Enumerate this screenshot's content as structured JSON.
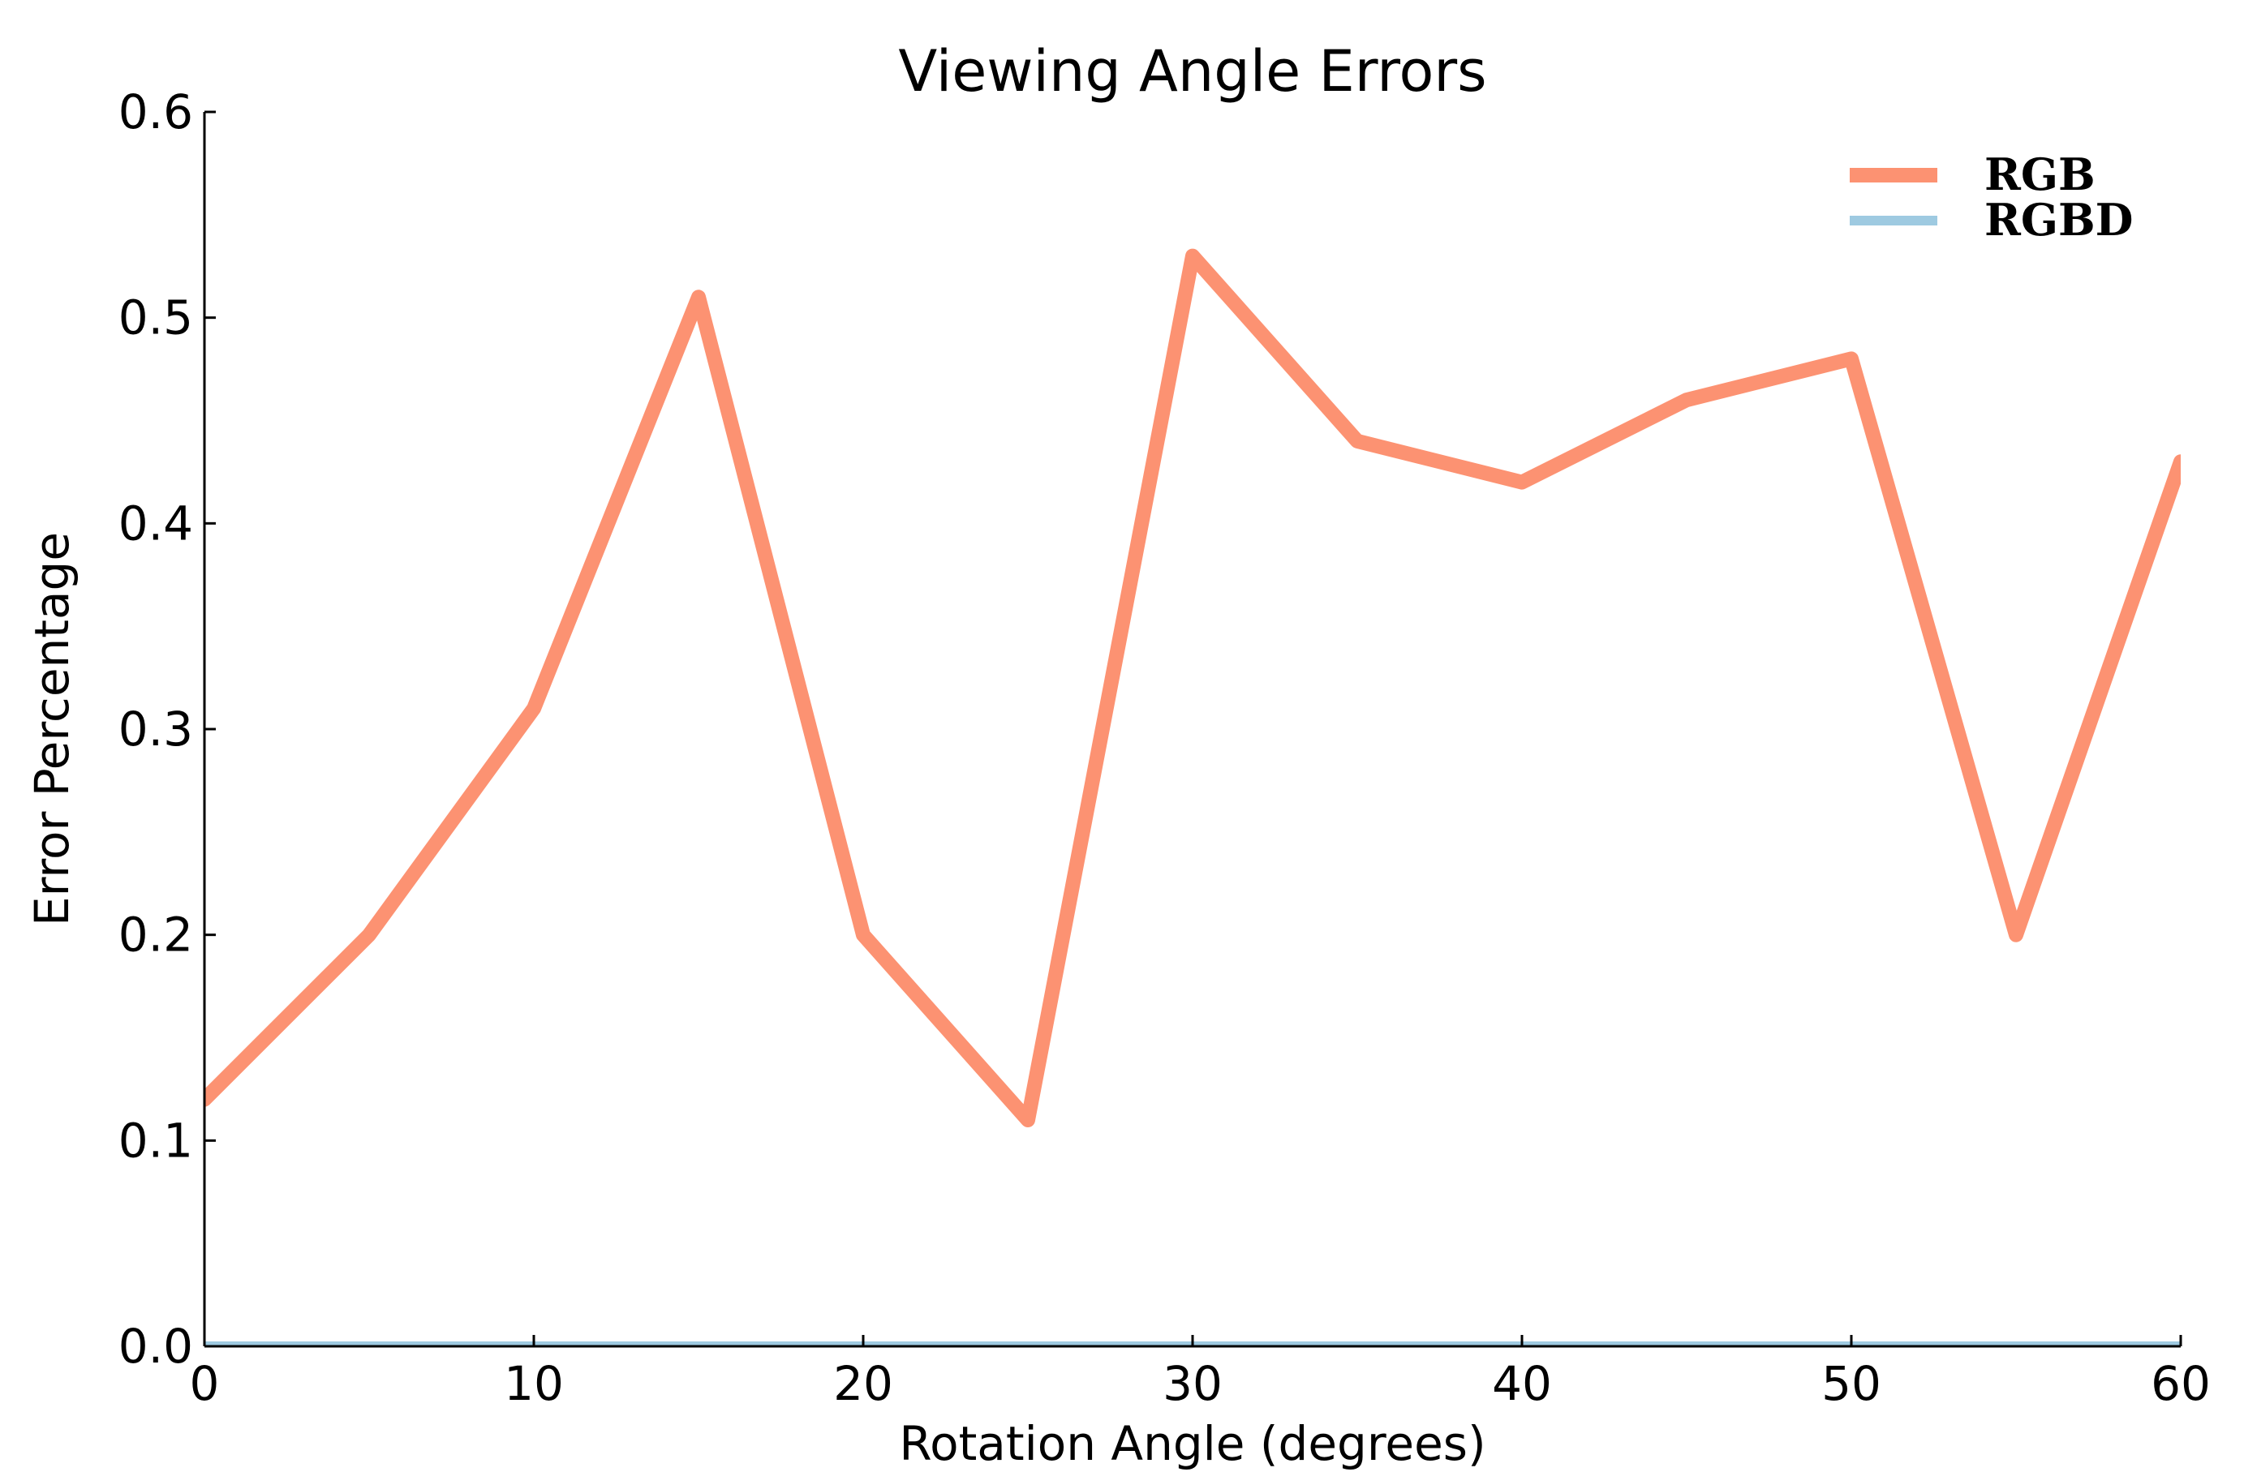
{
  "chart_data": {
    "type": "line",
    "title": "Viewing Angle Errors",
    "xlabel": "Rotation Angle (degrees)",
    "ylabel": "Error Percentage",
    "xlim": [
      0,
      60
    ],
    "ylim": [
      0,
      0.6
    ],
    "x_ticks": [
      0,
      10,
      20,
      30,
      40,
      50,
      60
    ],
    "x_tick_labels": [
      "0",
      "10",
      "20",
      "30",
      "40",
      "50",
      "60"
    ],
    "y_ticks": [
      0.0,
      0.1,
      0.2,
      0.3,
      0.4,
      0.5,
      0.6
    ],
    "y_tick_labels": [
      "0.0",
      "0.1",
      "0.2",
      "0.3",
      "0.4",
      "0.5",
      "0.6"
    ],
    "grid": false,
    "legend_position": "top-right",
    "x": [
      0,
      5,
      10,
      15,
      20,
      25,
      30,
      35,
      40,
      45,
      50,
      55,
      60
    ],
    "series": [
      {
        "name": "RGB",
        "color": "#fc9272",
        "values": [
          0.12,
          0.2,
          0.31,
          0.51,
          0.2,
          0.11,
          0.53,
          0.44,
          0.42,
          0.46,
          0.48,
          0.2,
          0.43
        ]
      },
      {
        "name": "RGBD",
        "color": "#9ecae1",
        "values": [
          0.0,
          0.0,
          0.0,
          0.0,
          0.0,
          0.0,
          0.0,
          0.0,
          0.0,
          0.0,
          0.0,
          0.0,
          0.0
        ]
      }
    ]
  }
}
